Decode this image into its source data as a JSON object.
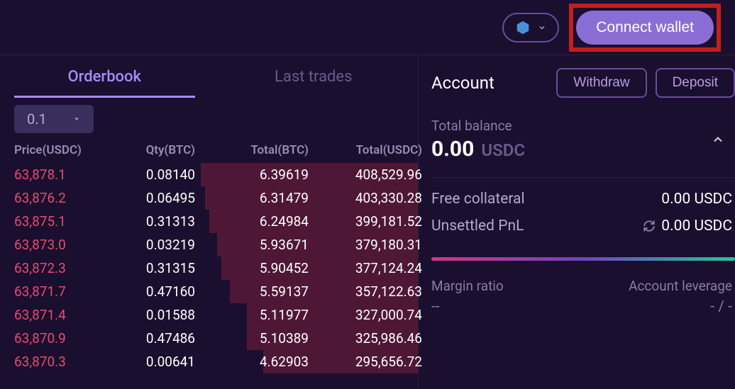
{
  "topbar": {
    "connect_label": "Connect wallet"
  },
  "tabs": {
    "orderbook": "Orderbook",
    "last_trades": "Last trades"
  },
  "orderbook": {
    "precision": "0.1",
    "headers": {
      "price": "Price(USDC)",
      "qty": "Qty(BTC)",
      "total_btc": "Total(BTC)",
      "total_usdc": "Total(USDC)"
    },
    "rows": [
      {
        "price": "63,878.1",
        "qty": "0.08140",
        "total_btc": "6.39619",
        "total_usdc": "408,529.96",
        "depth_pct": 52
      },
      {
        "price": "63,876.2",
        "qty": "0.06495",
        "total_btc": "6.31479",
        "total_usdc": "403,330.28",
        "depth_pct": 51
      },
      {
        "price": "63,875.1",
        "qty": "0.31313",
        "total_btc": "6.24984",
        "total_usdc": "399,181.52",
        "depth_pct": 50
      },
      {
        "price": "63,873.0",
        "qty": "0.03219",
        "total_btc": "5.93671",
        "total_usdc": "379,180.31",
        "depth_pct": 48
      },
      {
        "price": "63,872.3",
        "qty": "0.31315",
        "total_btc": "5.90452",
        "total_usdc": "377,124.24",
        "depth_pct": 47
      },
      {
        "price": "63,871.7",
        "qty": "0.47160",
        "total_btc": "5.59137",
        "total_usdc": "357,122.63",
        "depth_pct": 45
      },
      {
        "price": "63,871.4",
        "qty": "0.01588",
        "total_btc": "5.11977",
        "total_usdc": "327,000.74",
        "depth_pct": 41
      },
      {
        "price": "63,870.9",
        "qty": "0.47486",
        "total_btc": "5.10389",
        "total_usdc": "325,986.46",
        "depth_pct": 41
      },
      {
        "price": "63,870.3",
        "qty": "0.00641",
        "total_btc": "4.62903",
        "total_usdc": "295,656.72",
        "depth_pct": 37
      }
    ],
    "colors": {
      "price": "#e84a6f",
      "depth_fill": "rgba(180,40,70,0.35)"
    }
  },
  "account": {
    "title": "Account",
    "withdraw": "Withdraw",
    "deposit": "Deposit",
    "total_balance_label": "Total balance",
    "total_balance_value": "0.00",
    "total_balance_currency": "USDC",
    "free_collateral_label": "Free collateral",
    "free_collateral_value": "0.00 USDC",
    "unsettled_pnl_label": "Unsettled PnL",
    "unsettled_pnl_value": "0.00 USDC",
    "margin_ratio_label": "Margin ratio",
    "margin_ratio_value": "--",
    "account_leverage_label": "Account leverage",
    "account_leverage_value": "- / -"
  },
  "colors": {
    "background": "#1a0f2e",
    "accent": "#a78bfa",
    "button_primary": "#8b6dd6",
    "highlight_border": "#c41e1e"
  }
}
